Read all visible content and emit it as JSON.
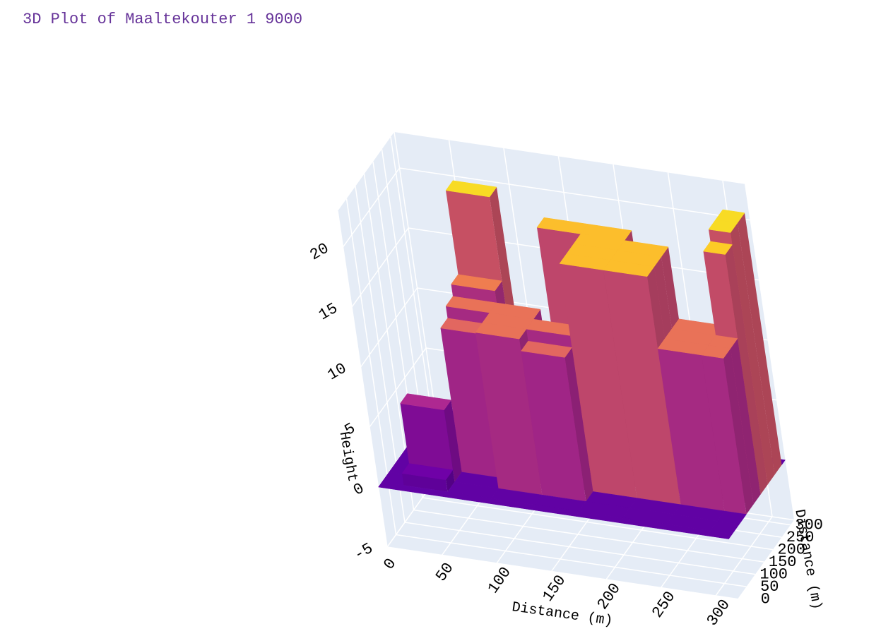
{
  "chart_data": {
    "type": "surface",
    "title": "3D Plot of Maaltekouter 1 9000",
    "x_title": "Distance (m)",
    "y_title": "Distance (m)",
    "z_title": "Height",
    "x": [
      0,
      40,
      80,
      120,
      160,
      200,
      240,
      280,
      320
    ],
    "y": [
      0,
      40,
      80,
      120,
      160,
      200,
      240,
      280,
      320
    ],
    "z": [
      [
        0,
        0,
        0,
        0,
        0,
        0,
        0,
        0,
        0
      ],
      [
        0,
        1,
        0,
        0,
        0,
        0,
        0,
        0,
        0
      ],
      [
        0,
        6,
        0,
        13,
        12,
        0,
        0,
        0,
        0
      ],
      [
        0,
        0,
        12,
        13,
        13,
        19,
        19,
        13,
        13
      ],
      [
        0,
        0,
        13,
        13,
        0,
        19,
        19,
        13,
        13
      ],
      [
        0,
        0,
        14,
        0,
        0,
        19,
        19,
        13,
        20
      ],
      [
        0,
        0,
        21,
        0,
        19,
        19,
        0,
        0,
        21
      ],
      [
        0,
        0,
        0,
        0,
        0,
        0,
        0,
        0,
        21
      ],
      [
        0,
        0,
        0,
        0,
        0,
        0,
        0,
        0,
        0
      ]
    ],
    "colorscale": "Plasma",
    "xlim": [
      0,
      320
    ],
    "ylim": [
      0,
      320
    ],
    "zlim": [
      -5,
      23
    ],
    "xticks": [
      0,
      50,
      100,
      150,
      200,
      250,
      300
    ],
    "yticks": [
      0,
      50,
      100,
      150,
      200,
      250,
      300
    ],
    "zticks": [
      -5,
      0,
      5,
      10,
      15,
      20
    ],
    "grid": true
  }
}
